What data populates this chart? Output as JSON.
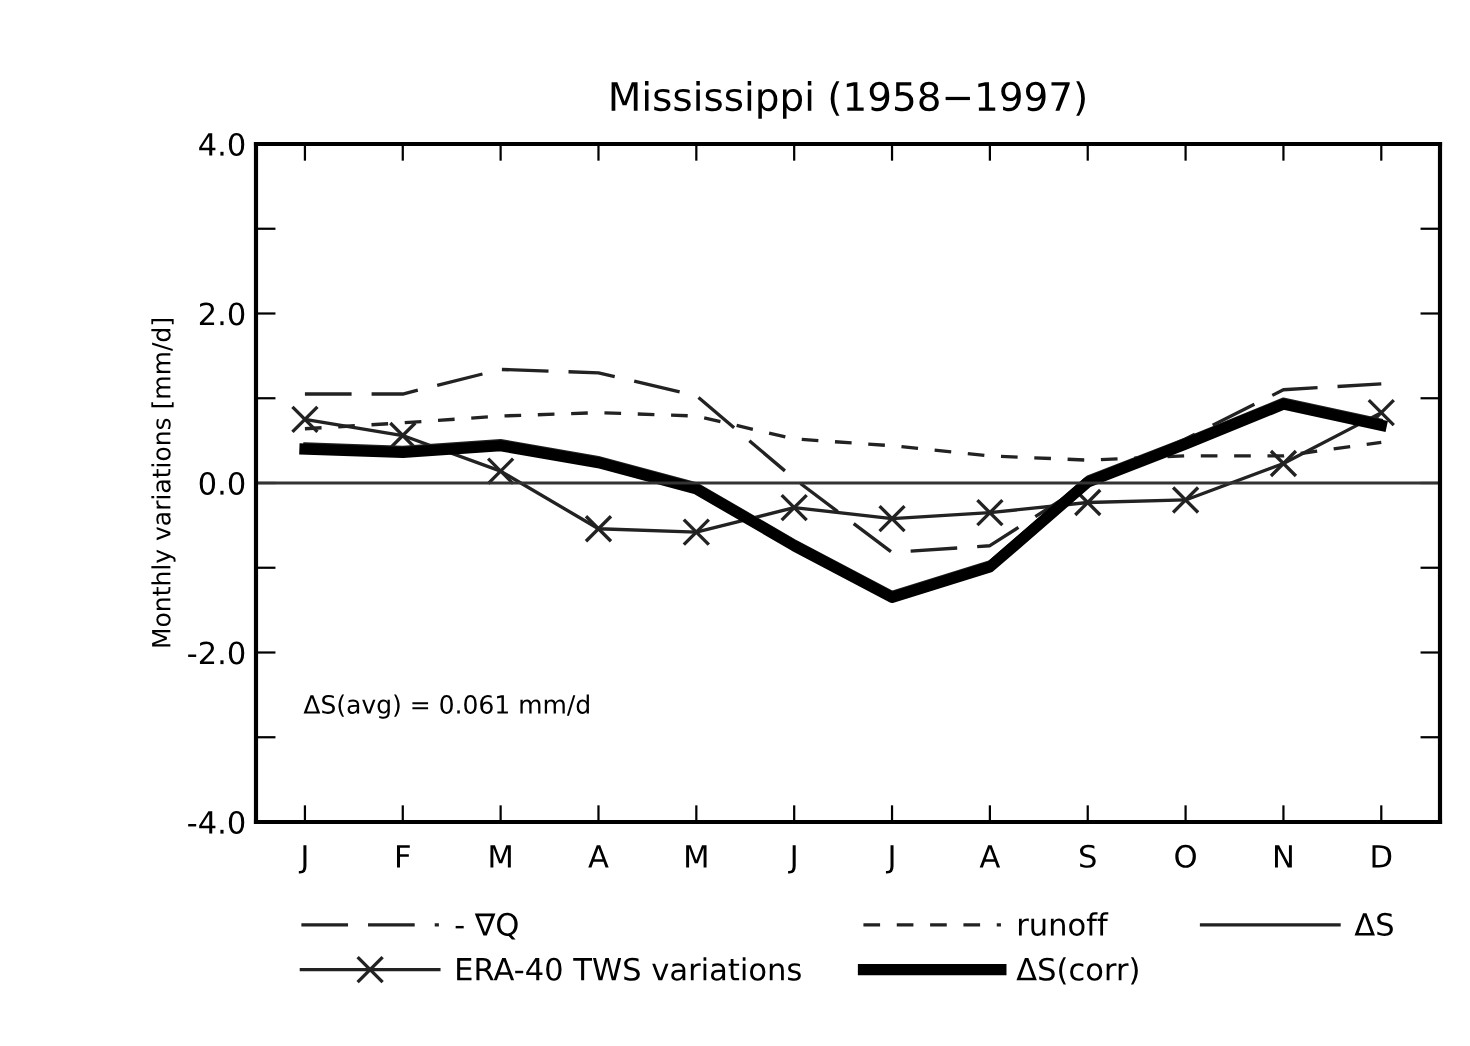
{
  "chart_data": {
    "type": "line",
    "title": "Mississippi (1958−1997)",
    "ylabel": "Monthly variations [mm/d]",
    "categories": [
      "J",
      "F",
      "M",
      "A",
      "M",
      "J",
      "J",
      "A",
      "S",
      "O",
      "N",
      "D"
    ],
    "series": [
      {
        "name": "- ∇Q",
        "color": "#222222",
        "line_style": "dashed",
        "marker": "none",
        "values": [
          1.05,
          1.05,
          1.34,
          1.3,
          1.03,
          0.05,
          -0.82,
          -0.74,
          0.0,
          0.52,
          1.1,
          1.17
        ]
      },
      {
        "name": "runoff",
        "color": "#222222",
        "line_style": "dotted",
        "marker": "none",
        "values": [
          0.64,
          0.71,
          0.79,
          0.83,
          0.79,
          0.52,
          0.44,
          0.32,
          0.27,
          0.32,
          0.32,
          0.48
        ]
      },
      {
        "name": "ΔS",
        "color": "#222222",
        "line_style": "solid",
        "marker": "none",
        "values": [
          0.46,
          0.42,
          0.5,
          0.3,
          -0.01,
          -0.68,
          -1.29,
          -0.93,
          0.07,
          0.52,
          0.99,
          0.74
        ]
      },
      {
        "name": "ERA-40 TWS variations",
        "color": "#222222",
        "line_style": "solid",
        "marker": "cross",
        "values": [
          0.75,
          0.56,
          0.14,
          -0.54,
          -0.58,
          -0.29,
          -0.42,
          -0.35,
          -0.23,
          -0.2,
          0.23,
          0.83
        ]
      },
      {
        "name": "ΔS(corr)",
        "color": "#000000",
        "line_style": "solid",
        "marker": "none",
        "values": [
          0.4,
          0.36,
          0.44,
          0.24,
          -0.07,
          -0.74,
          -1.35,
          -0.99,
          0.01,
          0.46,
          0.93,
          0.68
        ]
      }
    ],
    "ylim": [
      -4,
      4
    ],
    "yticks": [
      {
        "value": -4,
        "label": "-4.0"
      },
      {
        "value": -3,
        "label": null
      },
      {
        "value": -2,
        "label": "-2.0"
      },
      {
        "value": -1,
        "label": null
      },
      {
        "value": 0,
        "label": "0.0"
      },
      {
        "value": 1,
        "label": null
      },
      {
        "value": 2,
        "label": "2.0"
      },
      {
        "value": 3,
        "label": null
      },
      {
        "value": 4,
        "label": "4.0"
      }
    ],
    "ref_lines": [
      {
        "axis": "y",
        "value": 0,
        "color": "#333333"
      }
    ],
    "annotations": [
      {
        "text": "ΔS(avg) = 0.061 mm/d"
      }
    ],
    "grid": false,
    "legend": "bottom"
  }
}
